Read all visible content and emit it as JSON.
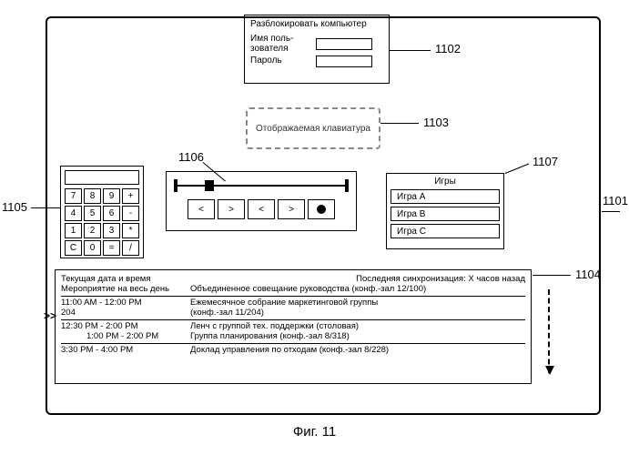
{
  "figure": {
    "caption": "Фиг. 11"
  },
  "labels": {
    "l1101": "1101",
    "l1102": "1102",
    "l1103": "1103",
    "l1104": "1104",
    "l1105": "1105",
    "l1106": "1106",
    "l1107": "1107",
    "current_marker": ">>"
  },
  "unlock": {
    "title": "Разблокировать компьютер",
    "username_label": "Имя поль-\nзователя",
    "password_label": "Пароль"
  },
  "keyboard": {
    "label": "Отображаемая клавиатура"
  },
  "calculator": {
    "keys": [
      "7",
      "8",
      "9",
      "+",
      "4",
      "5",
      "6",
      "-",
      "1",
      "2",
      "3",
      "*",
      "C",
      "0",
      "=",
      "/"
    ]
  },
  "media": {
    "buttons": [
      "<",
      ">",
      "<",
      ">",
      "●"
    ]
  },
  "games": {
    "header": "Игры",
    "items": [
      "Игра  A",
      "Игра  B",
      "Игра  C"
    ]
  },
  "schedule": {
    "top_left": "Текущая дата и время",
    "top_right": "Последняя синхронизация: X часов назад",
    "allday_label": "Мероприятие на весь день",
    "allday_desc": "Объединенное совещание руководства (конф.-зал 12/100)",
    "events": [
      {
        "time": "11:00 AM - 12:00 PM",
        "desc": "Ежемесячное собрание маркетинговой группы",
        "note": "204",
        "desc2": "(конф.-зал 11/204)"
      },
      {
        "time": "12:30 PM - 2:00 PM",
        "desc": "Ленч с группой тех. поддержки (столовая)"
      },
      {
        "time": "1:00 PM - 2:00 PM",
        "desc": "Группа планирования (конф.-зал 8/318)",
        "indent": true
      },
      {
        "time": "3:30 PM - 4:00 PM",
        "desc": "Доклад управления по отходам (конф.-зал 8/228)"
      }
    ]
  },
  "colors": {
    "border": "#000000",
    "dashed": "#888888",
    "bg": "#ffffff"
  }
}
